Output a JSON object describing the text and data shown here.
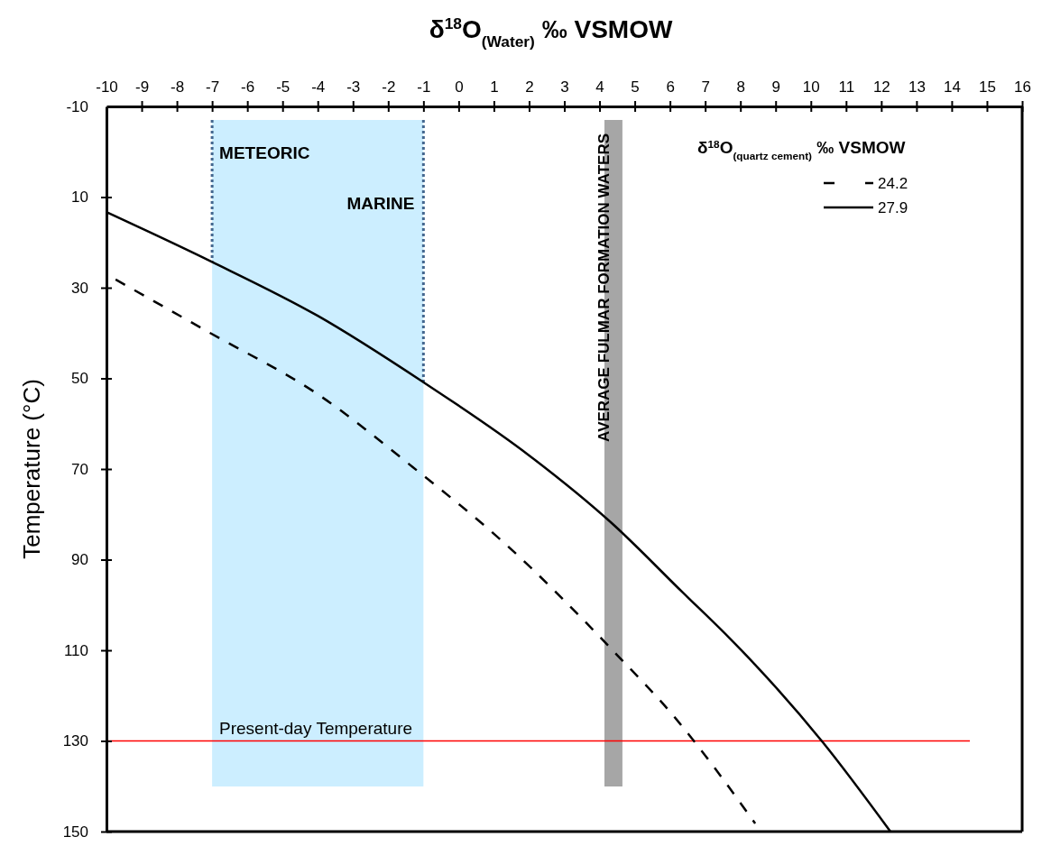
{
  "chart_data": {
    "type": "line",
    "xlabel": "δ$^{18}$O$_{(Water)}$ ‰  VSMOW",
    "ylabel": "Temperature (°C)",
    "legend_title": "δ$^{18}$O$_{(quartz cement)}$ ‰  VSMOW",
    "legend": "top right",
    "xlim": [
      -10,
      16
    ],
    "xticks": [
      -10,
      -9,
      -8,
      -7,
      -6,
      -5,
      -4,
      -3,
      -2,
      -1,
      0,
      1,
      2,
      3,
      4,
      5,
      6,
      7,
      8,
      9,
      10,
      11,
      12,
      13,
      14,
      15,
      16
    ],
    "ylim": [
      150,
      -10
    ],
    "yticks": [
      -10,
      10,
      30,
      50,
      70,
      90,
      110,
      130,
      150
    ],
    "series": [
      {
        "name": "24.2",
        "color": "#000000",
        "line_style": "dashed",
        "x": [
          -9.74,
          -7.03,
          -4,
          -1.3,
          1.32,
          4.47,
          6.19,
          6.78,
          8.42
        ],
        "values": [
          28.2,
          40.1,
          53.5,
          69.6,
          86.5,
          110.8,
          125.3,
          131,
          148.2
        ]
      },
      {
        "name": "27.9",
        "color": "#000000",
        "line_style": "solid",
        "x": [
          -10,
          -7.03,
          -4,
          -1.03,
          2,
          4.34,
          6.37,
          7.65,
          8.42,
          10.34,
          12.26
        ],
        "values": [
          13.3,
          24.2,
          36.2,
          50.7,
          67,
          81.9,
          97.3,
          107,
          113.2,
          130.3,
          150
        ]
      }
    ],
    "bands": [
      {
        "axis": "x",
        "from": -7,
        "to": -1,
        "color": "#cceeff"
      },
      {
        "axis": "x",
        "from": 4.14,
        "to": 4.65,
        "color": "#a6a6a6",
        "label": "AVERAGE FULMAR FORMATION WATERS"
      }
    ],
    "ref_lines": [
      {
        "axis": "x",
        "value": -7,
        "color": "#44678f",
        "line_style": "dotted"
      },
      {
        "axis": "x",
        "value": -1,
        "color": "#44678f",
        "line_style": "dotted"
      },
      {
        "axis": "y",
        "value": 130,
        "color": "#ff0000",
        "line_style": "solid",
        "label": "Present-day Temperature"
      }
    ],
    "annotations": [
      {
        "text": "METEORIC",
        "x": -7,
        "y": 0
      },
      {
        "text": "MARINE",
        "x": -1,
        "y": 11
      }
    ]
  }
}
